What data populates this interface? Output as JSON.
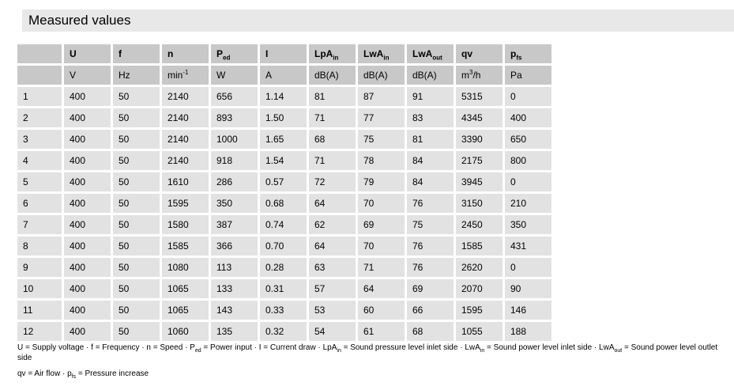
{
  "title": "Measured values",
  "table": {
    "columns": [
      {
        "label": [],
        "unit": []
      },
      {
        "label": [
          [
            "U"
          ]
        ],
        "unit": [
          [
            "V"
          ]
        ]
      },
      {
        "label": [
          [
            "f"
          ]
        ],
        "unit": [
          [
            "Hz"
          ]
        ]
      },
      {
        "label": [
          [
            "n"
          ]
        ],
        "unit": [
          [
            "min"
          ],
          [
            "-1",
            "sup"
          ]
        ]
      },
      {
        "label": [
          [
            "P"
          ],
          [
            "ed",
            "sub"
          ]
        ],
        "unit": [
          [
            "W"
          ]
        ]
      },
      {
        "label": [
          [
            "I"
          ]
        ],
        "unit": [
          [
            "A"
          ]
        ]
      },
      {
        "label": [
          [
            "LpA"
          ],
          [
            "in",
            "sub"
          ]
        ],
        "unit": [
          [
            "dB(A)"
          ]
        ]
      },
      {
        "label": [
          [
            "LwA"
          ],
          [
            "in",
            "sub"
          ]
        ],
        "unit": [
          [
            "dB(A)"
          ]
        ]
      },
      {
        "label": [
          [
            "LwA"
          ],
          [
            "out",
            "sub"
          ]
        ],
        "unit": [
          [
            "dB(A)"
          ]
        ]
      },
      {
        "label": [
          [
            "qv"
          ]
        ],
        "unit": [
          [
            "m"
          ],
          [
            "3",
            "sup"
          ],
          [
            "/h"
          ]
        ]
      },
      {
        "label": [
          [
            "p"
          ],
          [
            "fs",
            "sub"
          ]
        ],
        "unit": [
          [
            "Pa"
          ]
        ]
      }
    ],
    "rows": [
      [
        "1",
        "400",
        "50",
        "2140",
        "656",
        "1.14",
        "81",
        "87",
        "91",
        "5315",
        "0"
      ],
      [
        "2",
        "400",
        "50",
        "2140",
        "893",
        "1.50",
        "71",
        "77",
        "83",
        "4345",
        "400"
      ],
      [
        "3",
        "400",
        "50",
        "2140",
        "1000",
        "1.65",
        "68",
        "75",
        "81",
        "3390",
        "650"
      ],
      [
        "4",
        "400",
        "50",
        "2140",
        "918",
        "1.54",
        "71",
        "78",
        "84",
        "2175",
        "800"
      ],
      [
        "5",
        "400",
        "50",
        "1610",
        "286",
        "0.57",
        "72",
        "79",
        "84",
        "3945",
        "0"
      ],
      [
        "6",
        "400",
        "50",
        "1595",
        "350",
        "0.68",
        "64",
        "70",
        "76",
        "3150",
        "210"
      ],
      [
        "7",
        "400",
        "50",
        "1580",
        "387",
        "0.74",
        "62",
        "69",
        "75",
        "2450",
        "350"
      ],
      [
        "8",
        "400",
        "50",
        "1585",
        "366",
        "0.70",
        "64",
        "70",
        "76",
        "1585",
        "431"
      ],
      [
        "9",
        "400",
        "50",
        "1080",
        "113",
        "0.28",
        "63",
        "71",
        "76",
        "2620",
        "0"
      ],
      [
        "10",
        "400",
        "50",
        "1065",
        "133",
        "0.31",
        "57",
        "64",
        "69",
        "2070",
        "90"
      ],
      [
        "11",
        "400",
        "50",
        "1065",
        "143",
        "0.33",
        "53",
        "60",
        "66",
        "1595",
        "146"
      ],
      [
        "12",
        "400",
        "50",
        "1060",
        "135",
        "0.32",
        "54",
        "61",
        "68",
        "1055",
        "188"
      ]
    ]
  },
  "legend": {
    "line1": [
      [
        "U = Supply voltage · f = Frequency · n = Speed · P"
      ],
      [
        "ed",
        "sub"
      ],
      [
        " = Power input · I = Current draw · LpA"
      ],
      [
        "in",
        "sub"
      ],
      [
        " = Sound pressure level inlet side · LwA"
      ],
      [
        "in",
        "sub"
      ],
      [
        " = Sound power level inlet side · LwA"
      ],
      [
        "out",
        "sub"
      ],
      [
        " = Sound power level outlet side"
      ]
    ],
    "line2": [
      [
        "qv = Air flow · p"
      ],
      [
        "fs",
        "sub"
      ],
      [
        " = Pressure increase"
      ]
    ]
  },
  "colors": {
    "title_bar": "#e8e8e8",
    "header_cell": "#c8c8c8",
    "data_cell": "#e2e2e2",
    "text": "#000000",
    "background": "#ffffff"
  }
}
